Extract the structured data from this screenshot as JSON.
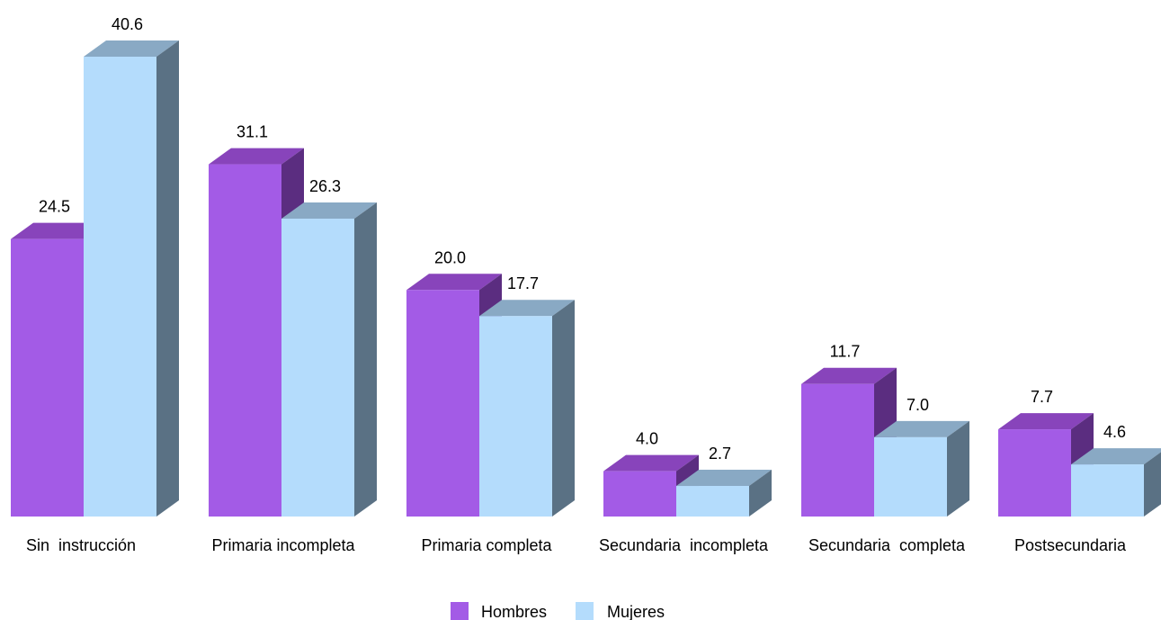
{
  "chart_data": {
    "type": "bar",
    "style": "3d-clustered-column",
    "categories": [
      "Sin  instrucción",
      "Primaria incompleta",
      "Primaria completa",
      "Secundaria  incompleta",
      "Secundaria  completa",
      "Postsecundaria"
    ],
    "series": [
      {
        "name": "Hombres",
        "values": [
          24.5,
          31.1,
          20.0,
          4.0,
          11.7,
          7.7
        ],
        "color": "#a35be6",
        "top_color": "#8844bb",
        "side_color": "#5b2d80"
      },
      {
        "name": "Mujeres",
        "values": [
          40.6,
          26.3,
          17.7,
          2.7,
          7.0,
          4.6
        ],
        "color": "#b4dcfc",
        "top_color": "#89a9c4",
        "side_color": "#5a7184"
      }
    ],
    "value_labels": [
      [
        "24.5",
        "31.1",
        "20.0",
        "4.0",
        "11.7",
        "7.7"
      ],
      [
        "40.6",
        "26.3",
        "17.7",
        "2.7",
        "7.0",
        "4.6"
      ]
    ],
    "title": "",
    "xlabel": "",
    "ylabel": "",
    "ylim": [
      0,
      40.6
    ],
    "grid": false,
    "legend": "bottom-center"
  }
}
